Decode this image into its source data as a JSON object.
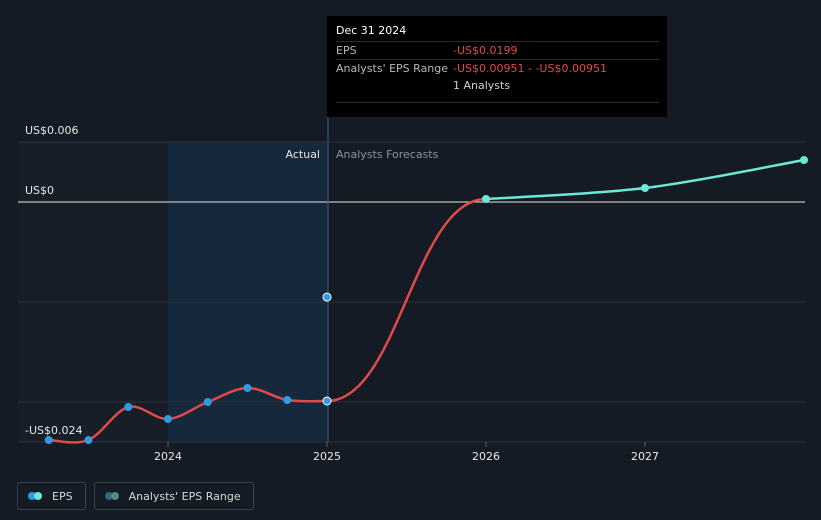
{
  "chart_data": {
    "type": "line",
    "y_top_label": "US$0.006",
    "y_zero_label": "US$0",
    "y_bottom_label": "-US$0.024",
    "x_ticks": [
      "2024",
      "2025",
      "2026",
      "2027"
    ],
    "ylim": [
      -0.024,
      0.006
    ],
    "region_labels": {
      "actual": "Actual",
      "forecast": "Analysts Forecasts"
    },
    "series": [
      {
        "name": "EPS",
        "color": "#e04a4a",
        "points": [
          {
            "x": 2023.25,
            "y": -0.0238
          },
          {
            "x": 2023.5,
            "y": -0.0238
          },
          {
            "x": 2023.75,
            "y": -0.0205
          },
          {
            "x": 2024.0,
            "y": -0.0217
          },
          {
            "x": 2024.25,
            "y": -0.02
          },
          {
            "x": 2024.5,
            "y": -0.0186
          },
          {
            "x": 2024.75,
            "y": -0.0198
          },
          {
            "x": 2025.0,
            "y": -0.0199
          }
        ]
      },
      {
        "name": "Forecast",
        "color": "#e04a4a",
        "points": [
          {
            "x": 2025.0,
            "y": -0.0199
          },
          {
            "x": 2026.0,
            "y": 0.0003
          }
        ]
      },
      {
        "name": "Forecast",
        "color": "#6ee8d6",
        "points": [
          {
            "x": 2026.0,
            "y": 0.0003
          },
          {
            "x": 2027.0,
            "y": 0.0014
          },
          {
            "x": 2028.0,
            "y": 0.0042
          }
        ]
      }
    ],
    "range_point": {
      "x": 2025.0,
      "y": -0.00951
    }
  },
  "tooltip": {
    "date": "Dec 31 2024",
    "eps_label": "EPS",
    "eps_value": "-US$0.0199",
    "range_label": "Analysts' EPS Range",
    "range_value": "-US$0.00951 - -US$0.00951",
    "analysts": "1 Analysts"
  },
  "legend": {
    "eps": "EPS",
    "range": "Analysts' EPS Range",
    "eps_colors": [
      "#2f9be0",
      "#6ee8d6"
    ],
    "range_colors": [
      "#2e6a7a",
      "#5b8590"
    ]
  }
}
